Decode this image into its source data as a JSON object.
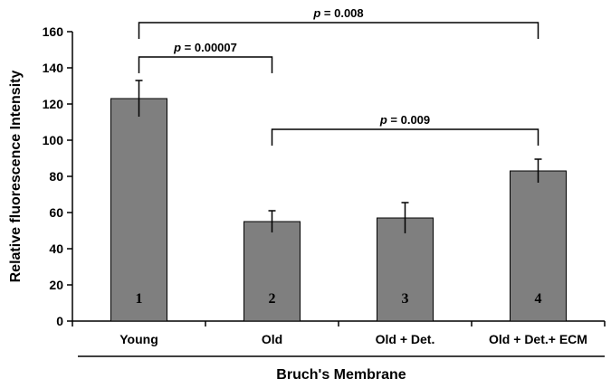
{
  "chart_data": {
    "type": "bar",
    "categories": [
      "Young",
      "Old",
      "Old + Det.",
      "Old + Det.+ ECM"
    ],
    "values": [
      123,
      55,
      57,
      83
    ],
    "errors": [
      10,
      6,
      8.5,
      6.5
    ],
    "bar_labels": [
      "1",
      "2",
      "3",
      "4"
    ],
    "xlabel": "Bruch's Membrane",
    "ylabel": "Relative fluorescence Intensity",
    "ylim": [
      0,
      160
    ],
    "yticks": [
      0,
      20,
      40,
      60,
      80,
      100,
      120,
      140,
      160
    ],
    "bar_color": "#7f7f7f",
    "grid": false,
    "significance": [
      {
        "from": 0,
        "to": 1,
        "label_prefix": "p",
        "label_value": " = 0.00007",
        "level": 146
      },
      {
        "from": 0,
        "to": 3,
        "label_prefix": "p",
        "label_value": " = 0.008",
        "level": 165
      },
      {
        "from": 1,
        "to": 3,
        "label_prefix": "p",
        "label_value": " = 0.009",
        "level": 106
      }
    ]
  }
}
